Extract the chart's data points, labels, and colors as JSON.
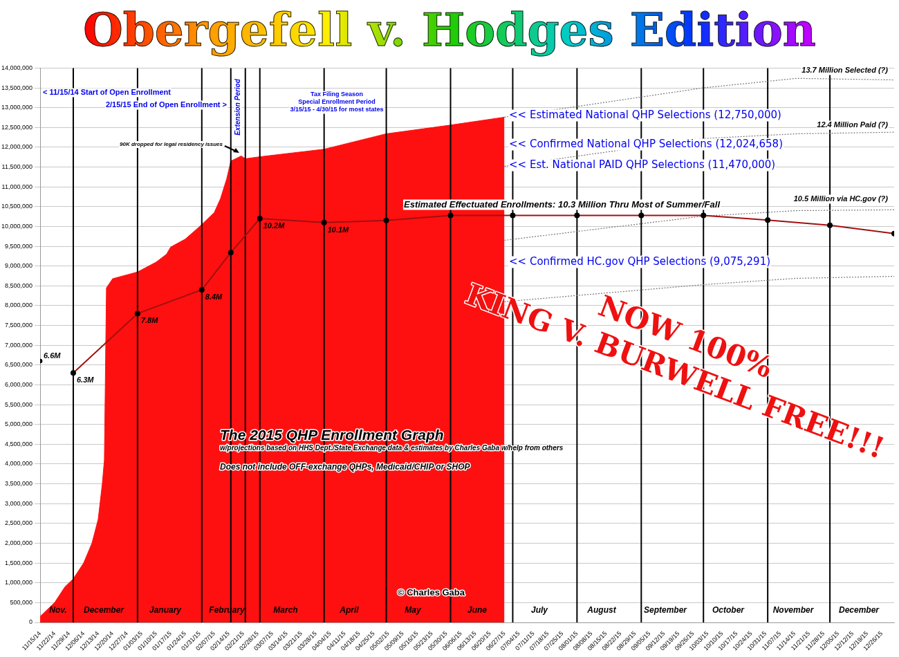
{
  "chart_data": {
    "type": "area",
    "title": "Obergefell v. Hodges Edition",
    "xlim": [
      "2014-11-15",
      "2016-01-01"
    ],
    "xticks": [
      {
        "value": "2014-11-15",
        "label": "11/15/14"
      },
      {
        "value": "2014-11-22",
        "label": "11/22/14"
      },
      {
        "value": "2014-11-29",
        "label": "11/29/14"
      },
      {
        "value": "2014-12-06",
        "label": "12/06/14"
      },
      {
        "value": "2014-12-13",
        "label": "12/13/14"
      },
      {
        "value": "2014-12-20",
        "label": "12/20/14"
      },
      {
        "value": "2014-12-27",
        "label": "12/27/14"
      },
      {
        "value": "2015-01-03",
        "label": "01/03/15"
      },
      {
        "value": "2015-01-10",
        "label": "01/10/15"
      },
      {
        "value": "2015-01-17",
        "label": "01/17/15"
      },
      {
        "value": "2015-01-24",
        "label": "01/24/15"
      },
      {
        "value": "2015-01-31",
        "label": "01/31/15"
      },
      {
        "value": "2015-02-07",
        "label": "02/07/15"
      },
      {
        "value": "2015-02-14",
        "label": "02/14/15"
      },
      {
        "value": "2015-02-21",
        "label": "02/21/15"
      },
      {
        "value": "2015-02-28",
        "label": "02/28/15"
      },
      {
        "value": "2015-03-07",
        "label": "03/07/15"
      },
      {
        "value": "2015-03-14",
        "label": "03/14/15"
      },
      {
        "value": "2015-03-21",
        "label": "03/21/15"
      },
      {
        "value": "2015-03-28",
        "label": "03/28/15"
      },
      {
        "value": "2015-04-04",
        "label": "04/04/15"
      },
      {
        "value": "2015-04-11",
        "label": "04/11/15"
      },
      {
        "value": "2015-04-18",
        "label": "04/18/15"
      },
      {
        "value": "2015-04-25",
        "label": "04/25/15"
      },
      {
        "value": "2015-05-02",
        "label": "05/02/15"
      },
      {
        "value": "2015-05-09",
        "label": "05/09/15"
      },
      {
        "value": "2015-05-16",
        "label": "05/16/15"
      },
      {
        "value": "2015-05-23",
        "label": "05/23/15"
      },
      {
        "value": "2015-05-30",
        "label": "05/30/15"
      },
      {
        "value": "2015-06-06",
        "label": "06/06/15"
      },
      {
        "value": "2015-06-13",
        "label": "06/13/15"
      },
      {
        "value": "2015-06-20",
        "label": "06/20/15"
      },
      {
        "value": "2015-06-27",
        "label": "06/27/15"
      },
      {
        "value": "2015-07-04",
        "label": "07/04/15"
      },
      {
        "value": "2015-07-11",
        "label": "07/11/15"
      },
      {
        "value": "2015-07-18",
        "label": "07/18/15"
      },
      {
        "value": "2015-07-25",
        "label": "07/25/15"
      },
      {
        "value": "2015-08-01",
        "label": "08/01/15"
      },
      {
        "value": "2015-08-08",
        "label": "08/08/15"
      },
      {
        "value": "2015-08-15",
        "label": "08/15/15"
      },
      {
        "value": "2015-08-22",
        "label": "08/22/15"
      },
      {
        "value": "2015-08-29",
        "label": "08/29/15"
      },
      {
        "value": "2015-09-05",
        "label": "09/05/15"
      },
      {
        "value": "2015-09-12",
        "label": "09/12/15"
      },
      {
        "value": "2015-09-19",
        "label": "09/19/15"
      },
      {
        "value": "2015-09-26",
        "label": "09/26/15"
      },
      {
        "value": "2015-10-03",
        "label": "10/03/15"
      },
      {
        "value": "2015-10-10",
        "label": "10/10/15"
      },
      {
        "value": "2015-10-17",
        "label": "10/17/15"
      },
      {
        "value": "2015-10-24",
        "label": "10/24/15"
      },
      {
        "value": "2015-10-31",
        "label": "10/31/15"
      },
      {
        "value": "2015-11-07",
        "label": "11/07/15"
      },
      {
        "value": "2015-11-14",
        "label": "11/14/15"
      },
      {
        "value": "2015-11-21",
        "label": "11/21/15"
      },
      {
        "value": "2015-11-28",
        "label": "11/28/15"
      },
      {
        "value": "2015-12-05",
        "label": "12/05/15"
      },
      {
        "value": "2015-12-12",
        "label": "12/12/15"
      },
      {
        "value": "2015-12-19",
        "label": "12/19/15"
      },
      {
        "value": "2015-12-26",
        "label": "12/26/15"
      }
    ],
    "ylim": [
      0,
      14000000
    ],
    "yticks": [
      {
        "value": 0,
        "label": "0"
      },
      {
        "value": 500000,
        "label": "500,000"
      },
      {
        "value": 1000000,
        "label": "1,000,000"
      },
      {
        "value": 1500000,
        "label": "1,500,000"
      },
      {
        "value": 2000000,
        "label": "2,000,000"
      },
      {
        "value": 2500000,
        "label": "2,500,000"
      },
      {
        "value": 3000000,
        "label": "3,000,000"
      },
      {
        "value": 3500000,
        "label": "3,500,000"
      },
      {
        "value": 4000000,
        "label": "4,000,000"
      },
      {
        "value": 4500000,
        "label": "4,500,000"
      },
      {
        "value": 5000000,
        "label": "5,000,000"
      },
      {
        "value": 5500000,
        "label": "5,500,000"
      },
      {
        "value": 6000000,
        "label": "6,000,000"
      },
      {
        "value": 6500000,
        "label": "6,500,000"
      },
      {
        "value": 7000000,
        "label": "7,000,000"
      },
      {
        "value": 7500000,
        "label": "7,500,000"
      },
      {
        "value": 8000000,
        "label": "8,000,000"
      },
      {
        "value": 8500000,
        "label": "8,500,000"
      },
      {
        "value": 9000000,
        "label": "9,000,000"
      },
      {
        "value": 9500000,
        "label": "9,500,000"
      },
      {
        "value": 10000000,
        "label": "10,000,000"
      },
      {
        "value": 10500000,
        "label": "10,500,000"
      },
      {
        "value": 11000000,
        "label": "11,000,000"
      },
      {
        "value": 11500000,
        "label": "11,500,000"
      },
      {
        "value": 12000000,
        "label": "12,000,000"
      },
      {
        "value": 12500000,
        "label": "12,500,000"
      },
      {
        "value": 13000000,
        "label": "13,000,000"
      },
      {
        "value": 13500000,
        "label": "13,500,000"
      },
      {
        "value": 14000000,
        "label": "14,000,000"
      }
    ],
    "grid": "y",
    "legend": false,
    "series": [
      {
        "color": "#ff1010",
        "x": [
          "2014-11-15",
          "2014-11-22",
          "2014-11-27",
          "2014-12-01",
          "2014-12-06",
          "2014-12-10",
          "2014-12-13",
          "2014-12-15",
          "2014-12-16",
          "2014-12-17",
          "2014-12-20",
          "2015-01-01",
          "2015-01-10",
          "2015-01-15",
          "2015-01-17",
          "2015-01-24",
          "2015-01-31",
          "2015-02-07",
          "2015-02-10",
          "2015-02-13",
          "2015-02-15",
          "2015-02-20",
          "2015-02-22",
          "2015-03-01",
          "2015-04-01",
          "2015-05-01",
          "2015-06-01",
          "2015-06-27"
        ],
        "values": [
          150000,
          500000,
          900000,
          1100000,
          1500000,
          2000000,
          2600000,
          3500000,
          4100000,
          8450000,
          8680000,
          8850000,
          9100000,
          9300000,
          9480000,
          9680000,
          10000000,
          10350000,
          10700000,
          11200000,
          11650000,
          11780000,
          11710000,
          11760000,
          11950000,
          12340000,
          12560000,
          12760000
        ]
      },
      {
        "type": "line",
        "color": "#a01010",
        "marker": "circle",
        "x": [
          "2014-12-01",
          "2015-01-01",
          "2015-02-01",
          "2015-02-15",
          "2015-03-01",
          "2015-04-01",
          "2015-05-01",
          "2015-06-01",
          "2015-07-01",
          "2015-08-01",
          "2015-09-01",
          "2015-10-01",
          "2015-11-01",
          "2015-12-01",
          "2016-01-01"
        ],
        "values": [
          6300000,
          7800000,
          8400000,
          9340000,
          10200000,
          10100000,
          10150000,
          10280000,
          10280000,
          10280000,
          10280000,
          10280000,
          10160000,
          10030000,
          9820000
        ],
        "value_labels": [
          "6.3M",
          "7.8M",
          "8.4M",
          null,
          "10.2M",
          "10.1M",
          null,
          null,
          null,
          null,
          null,
          null,
          null,
          null,
          null
        ]
      },
      {
        "type": "scatter",
        "color": "#000000",
        "marker": "circle",
        "x": [
          "2014-11-15"
        ],
        "values": [
          6600000
        ],
        "value_labels": [
          "6.6M"
        ]
      },
      {
        "type": "line",
        "color": "#777777",
        "line_style": "dotted",
        "marker": "none",
        "x": [
          "2015-06-27",
          "2015-10-01",
          "2015-11-15",
          "2016-01-01"
        ],
        "values": [
          12760000,
          13500000,
          13740000,
          13700000
        ]
      },
      {
        "type": "line",
        "color": "#777777",
        "line_style": "dotted",
        "marker": "none",
        "x": [
          "2015-06-27",
          "2015-10-01",
          "2015-11-15",
          "2016-01-01"
        ],
        "values": [
          11520000,
          12220000,
          12340000,
          12380000
        ]
      },
      {
        "type": "line",
        "color": "#777777",
        "line_style": "dotted",
        "marker": "none",
        "x": [
          "2015-06-27",
          "2015-10-01",
          "2015-11-15",
          "2016-01-01"
        ],
        "values": [
          9650000,
          10260000,
          10400000,
          10420000
        ]
      },
      {
        "type": "line",
        "color": "#777777",
        "line_style": "dotted",
        "marker": "none",
        "x": [
          "2015-06-27",
          "2015-10-01",
          "2015-11-15",
          "2016-01-01"
        ],
        "values": [
          8100000,
          8530000,
          8690000,
          8740000
        ]
      }
    ],
    "ref_lines": [
      {
        "axis": "x",
        "value": "2014-12-01",
        "label": null,
        "color": "#000000"
      },
      {
        "axis": "x",
        "value": "2015-01-01",
        "label": null,
        "color": "#000000"
      },
      {
        "axis": "x",
        "value": "2015-02-01",
        "label": null,
        "color": "#000000"
      },
      {
        "axis": "x",
        "value": "2015-02-15",
        "label": null,
        "color": "#000000"
      },
      {
        "axis": "x",
        "value": "2015-02-22",
        "label": null,
        "color": "#000000"
      },
      {
        "axis": "x",
        "value": "2015-03-01",
        "label": null,
        "color": "#000000"
      },
      {
        "axis": "x",
        "value": "2015-04-01",
        "label": null,
        "color": "#000000"
      },
      {
        "axis": "x",
        "value": "2015-05-01",
        "label": null,
        "color": "#000000"
      },
      {
        "axis": "x",
        "value": "2015-06-01",
        "label": null,
        "color": "#000000"
      },
      {
        "axis": "x",
        "value": "2015-07-01",
        "label": null,
        "color": "#000000"
      },
      {
        "axis": "x",
        "value": "2015-08-01",
        "label": null,
        "color": "#000000"
      },
      {
        "axis": "x",
        "value": "2015-09-01",
        "label": null,
        "color": "#000000"
      },
      {
        "axis": "x",
        "value": "2015-10-01",
        "label": null,
        "color": "#000000"
      },
      {
        "axis": "x",
        "value": "2015-11-01",
        "label": null,
        "color": "#000000"
      },
      {
        "axis": "x",
        "value": "2015-12-01",
        "label": null,
        "color": "#000000"
      }
    ],
    "annotations": [
      "< 11/15/14 Start of Open Enrollment",
      "2/15/15 End of Open Enrollment >",
      "Extension Period",
      "Tax Filing Season\nSpecial Enrollment Period\n3/15/15 - 4/30/15 for most states",
      "90K dropped for legal residency issues",
      "<< Estimated National QHP Selections (12,750,000)",
      "<< Confirmed National QHP Selections (12,024,658)",
      "<< Est. National PAID QHP Selections (11,470,000)",
      "Estimated Effectuated Enrollments: 10.3 Million Thru Most of Summer/Fall",
      "<< Confirmed HC.gov QHP Selections (9,075,291)",
      "13.7 Million Selected (?)",
      "12.4 Million Paid (?)",
      "10.5 Million via HC.gov (?)",
      "NOW 100%",
      "KING V. BURWELL FREE!!!",
      "The 2015 QHP Enrollment Graph",
      "w/projections based on HHS Dept./State Exchange data & estimates by Charles Gaba w/help from others",
      "Does not include OFF-exchange QHPs, Medicaid/CHIP or SHOP",
      "© Charles Gaba",
      "Nov.",
      "December",
      "January",
      "February",
      "March",
      "April",
      "May",
      "June",
      "July",
      "August",
      "September",
      "October",
      "November",
      "December"
    ]
  }
}
